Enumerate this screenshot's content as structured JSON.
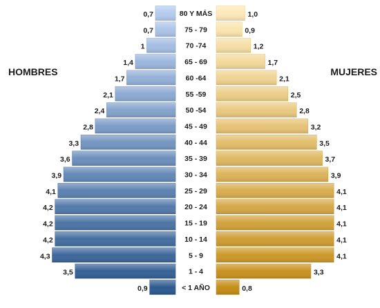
{
  "chart_data": {
    "type": "bar",
    "orientation": "horizontal",
    "layout": "population-pyramid",
    "categories": [
      "80 Y MÁS",
      "75 - 79",
      "70 -74",
      "65 - 69",
      "60 -64",
      "55 -59",
      "50 -54",
      "45 - 49",
      "40 - 44",
      "35 - 39",
      "30 - 34",
      "25 - 29",
      "20 - 24",
      "15 - 19",
      "10 - 14",
      "5 - 9",
      "1 - 4",
      "< 1 AÑO"
    ],
    "series": [
      {
        "name": "HOMBRES",
        "side": "left",
        "values": [
          0.7,
          0.7,
          1,
          1.4,
          1.7,
          2.1,
          2.4,
          2.8,
          3.3,
          3.6,
          3.9,
          4.1,
          4.2,
          4.2,
          4.2,
          4.3,
          3.5,
          0.9
        ],
        "labels": [
          "0,7",
          "0,7",
          "1",
          "1,4",
          "1,7",
          "2,1",
          "2,4",
          "2,8",
          "3,3",
          "3,6",
          "3,9",
          "4,1",
          "4,2",
          "4,2",
          "4,2",
          "4,3",
          "3,5",
          "0,9"
        ],
        "color_light": "#b4cbee",
        "color_dark": "#2c5a8f"
      },
      {
        "name": "MUJERES",
        "side": "right",
        "values": [
          1.0,
          0.9,
          1.2,
          1.7,
          2.1,
          2.5,
          2.8,
          3.2,
          3.5,
          3.7,
          3.9,
          4.1,
          4.1,
          4.1,
          4.1,
          4.1,
          3.3,
          0.8
        ],
        "labels": [
          "1,0",
          "0,9",
          "1,2",
          "1,7",
          "2,1",
          "2,5",
          "2,8",
          "3,2",
          "3,5",
          "3,7",
          "3,9",
          "4,1",
          "4,1",
          "4,1",
          "4,1",
          "4,1",
          "3,3",
          "0,8"
        ],
        "color_light": "#fde9b8",
        "color_dark": "#c58d16"
      }
    ],
    "legend": [
      "HOMBRES",
      "MUJERES"
    ],
    "grid": false
  }
}
